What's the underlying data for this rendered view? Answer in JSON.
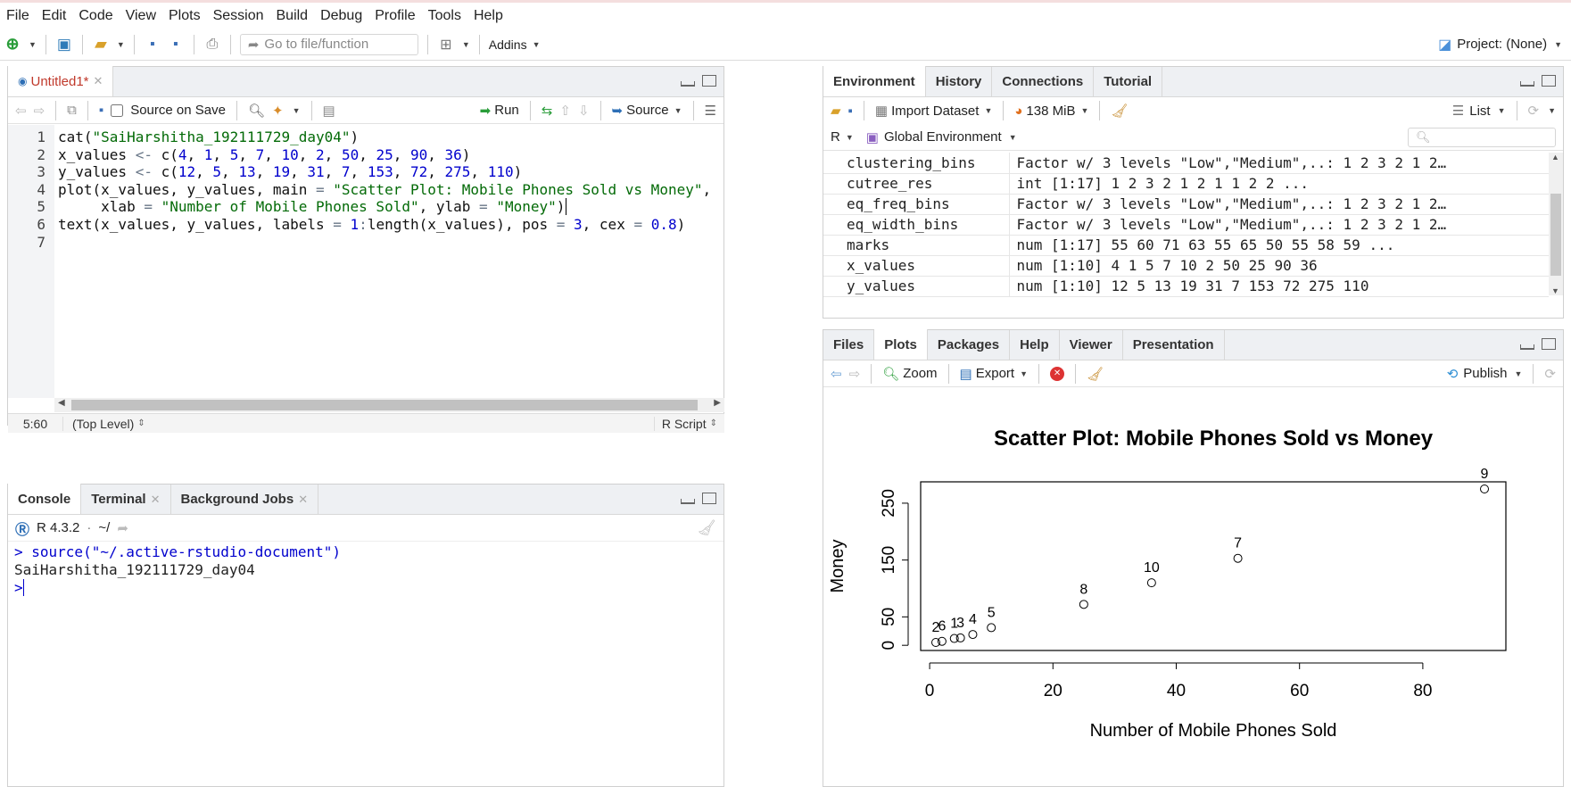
{
  "menu": [
    "File",
    "Edit",
    "Code",
    "View",
    "Plots",
    "Session",
    "Build",
    "Debug",
    "Profile",
    "Tools",
    "Help"
  ],
  "toolbar": {
    "goto_placeholder": "Go to file/function",
    "addins": "Addins",
    "project": "Project: (None)"
  },
  "source_pane": {
    "tab": "Untitled1*",
    "source_on_save": "Source on Save",
    "run": "Run",
    "source": "Source",
    "line_numbers": [
      "1",
      "2",
      "3",
      "4",
      "5",
      "6",
      "7"
    ],
    "cursor": "5:60",
    "scope": "(Top Level)",
    "file_type": "R Script"
  },
  "console_pane": {
    "tabs": [
      "Console",
      "Terminal",
      "Background Jobs"
    ],
    "r_version": "R 4.3.2",
    "path": "~/",
    "lines": [
      "> source(\"~/.active-rstudio-document\")",
      "SaiHarshitha_192111729_day04",
      ">"
    ]
  },
  "env_pane": {
    "tabs": [
      "Environment",
      "History",
      "Connections",
      "Tutorial"
    ],
    "import_dataset": "Import Dataset",
    "memory": "138 MiB",
    "view_mode": "List",
    "language": "R",
    "scope": "Global Environment",
    "vars": [
      {
        "name": "clustering_bins",
        "value": "Factor w/ 3 levels \"Low\",\"Medium\",..: 1 2 3 2 1 2…"
      },
      {
        "name": "cutree_res",
        "value": "int [1:17] 1 2 3 2 1 2 1 1 2 2 ..."
      },
      {
        "name": "eq_freq_bins",
        "value": "Factor w/ 3 levels \"Low\",\"Medium\",..: 1 2 3 2 1 2…"
      },
      {
        "name": "eq_width_bins",
        "value": "Factor w/ 3 levels \"Low\",\"Medium\",..: 1 2 3 2 1 2…"
      },
      {
        "name": "marks",
        "value": "num [1:17] 55 60 71 63 55 65 50 55 58 59 ..."
      },
      {
        "name": "x_values",
        "value": "num [1:10] 4 1 5 7 10 2 50 25 90 36"
      },
      {
        "name": "y_values",
        "value": "num [1:10] 12 5 13 19 31 7 153 72 275 110"
      }
    ]
  },
  "plots_pane": {
    "tabs": [
      "Files",
      "Plots",
      "Packages",
      "Help",
      "Viewer",
      "Presentation"
    ],
    "zoom": "Zoom",
    "export": "Export",
    "publish": "Publish"
  },
  "chart_data": {
    "type": "scatter",
    "title": "Scatter Plot: Mobile Phones Sold vs Money",
    "xlabel": "Number of Mobile Phones Sold",
    "ylabel": "Money",
    "x": [
      4,
      1,
      5,
      7,
      10,
      2,
      50,
      25,
      90,
      36
    ],
    "y": [
      12,
      5,
      13,
      19,
      31,
      7,
      153,
      72,
      275,
      110
    ],
    "labels": [
      "1",
      "2",
      "3",
      "4",
      "5",
      "6",
      "7",
      "8",
      "9",
      "10"
    ],
    "xticks": [
      "0",
      "20",
      "40",
      "60",
      "80"
    ],
    "yticks": [
      "0",
      "50",
      "150",
      "250"
    ],
    "xlim": [
      1,
      90
    ],
    "ylim": [
      5,
      275
    ],
    "grid": false
  }
}
